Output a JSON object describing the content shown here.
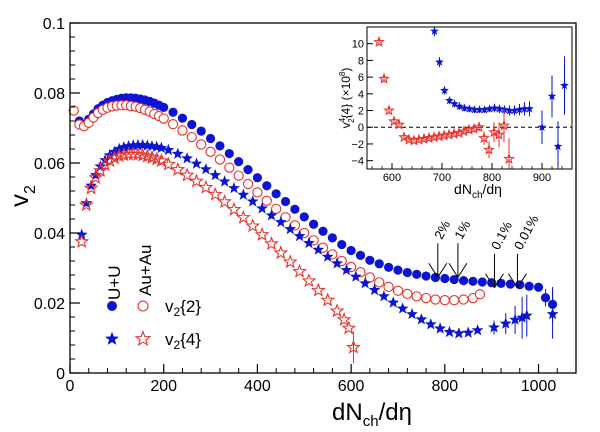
{
  "chart_data": [
    {
      "type": "scatter",
      "xlabel": "dN",
      "xlabel_sub": "ch",
      "xlabel_tail": "/dη",
      "ylabel": "v",
      "ylabel_sub": "2",
      "xlim": [
        0,
        1080
      ],
      "ylim": [
        0,
        0.1
      ],
      "x_ticks": [
        0,
        200,
        400,
        600,
        800,
        1000
      ],
      "x_tick_labels": [
        "0",
        "200",
        "400",
        "600",
        "800",
        "1000"
      ],
      "y_ticks": [
        0,
        0.02,
        0.04,
        0.06,
        0.08,
        0.1
      ],
      "y_tick_labels": [
        "0",
        "0.02",
        "0.04",
        "0.06",
        "0.08",
        "0.1"
      ],
      "legend": {
        "col1": "U+U",
        "col2": "Au+Au",
        "row1": "v",
        "row1_sub": "2",
        "row1_tail": "{2}",
        "row2": "v",
        "row2_sub": "2",
        "row2_tail": "{4}"
      },
      "annotations": [
        {
          "text": "2%",
          "x": 785,
          "y": 0.0285
        },
        {
          "text": "1%",
          "x": 828,
          "y": 0.0285
        },
        {
          "text": "0.1%",
          "x": 906,
          "y": 0.0255
        },
        {
          "text": "0.01%",
          "x": 955,
          "y": 0.0255
        }
      ],
      "colors": {
        "uu": "#0a14d2",
        "auau": "#e8322a"
      },
      "series": [
        {
          "name": "U+U v2{2}",
          "marker": "filled-circle",
          "color": "#0a14d2",
          "x": [
            8,
            20,
            30,
            40,
            50,
            60,
            70,
            80,
            90,
            100,
            110,
            120,
            130,
            140,
            150,
            160,
            170,
            180,
            190,
            200,
            220,
            240,
            260,
            280,
            300,
            320,
            340,
            360,
            380,
            400,
            420,
            440,
            460,
            480,
            500,
            520,
            540,
            560,
            580,
            600,
            620,
            640,
            660,
            680,
            700,
            720,
            740,
            760,
            780,
            800,
            820,
            840,
            860,
            880,
            900,
            920,
            940,
            960,
            980,
            1000,
            1015,
            1030
          ],
          "y": [
            0.075,
            0.072,
            0.071,
            0.0725,
            0.074,
            0.0755,
            0.0765,
            0.0773,
            0.0778,
            0.0782,
            0.0785,
            0.0786,
            0.0786,
            0.0785,
            0.0783,
            0.078,
            0.0776,
            0.0771,
            0.0765,
            0.0759,
            0.0745,
            0.0728,
            0.071,
            0.0691,
            0.067,
            0.0649,
            0.0627,
            0.0604,
            0.0581,
            0.0558,
            0.0535,
            0.0512,
            0.049,
            0.0468,
            0.0446,
            0.0425,
            0.0405,
            0.0386,
            0.0367,
            0.035,
            0.0336,
            0.0322,
            0.0312,
            0.0302,
            0.0294,
            0.0287,
            0.0282,
            0.0277,
            0.0273,
            0.027,
            0.0267,
            0.0264,
            0.0262,
            0.026,
            0.0258,
            0.0256,
            0.0254,
            0.0252,
            0.0248,
            0.0245,
            0.0215,
            0.0196
          ],
          "err": [
            0,
            0,
            0,
            0,
            0,
            0,
            0,
            0,
            0,
            0,
            0,
            0,
            0,
            0,
            0,
            0,
            0,
            0,
            0,
            0,
            0,
            0,
            0,
            0,
            0,
            0,
            0,
            0,
            0,
            0,
            0,
            0,
            0,
            0,
            0,
            0,
            0,
            0,
            0,
            0,
            0,
            0,
            0,
            0,
            0,
            0,
            0,
            0,
            0,
            0,
            0,
            0,
            0,
            0,
            0,
            0,
            0,
            0,
            0,
            0,
            0.0025,
            0.005
          ]
        },
        {
          "name": "Au+Au v2{2}",
          "marker": "open-circle",
          "color": "#e8322a",
          "x": [
            8,
            20,
            30,
            40,
            50,
            60,
            70,
            80,
            90,
            100,
            110,
            120,
            130,
            140,
            150,
            160,
            170,
            180,
            190,
            200,
            220,
            240,
            260,
            280,
            300,
            320,
            340,
            360,
            380,
            400,
            420,
            440,
            460,
            480,
            500,
            520,
            540,
            560,
            580,
            600,
            620,
            640,
            660,
            680,
            700,
            720,
            740,
            760,
            780,
            800,
            820,
            840,
            860,
            875
          ],
          "y": [
            0.075,
            0.071,
            0.0705,
            0.0715,
            0.073,
            0.0743,
            0.0752,
            0.0758,
            0.0762,
            0.0764,
            0.0765,
            0.0765,
            0.0763,
            0.0761,
            0.0757,
            0.0752,
            0.0747,
            0.074,
            0.0734,
            0.0727,
            0.0711,
            0.0693,
            0.0674,
            0.0653,
            0.0632,
            0.061,
            0.0587,
            0.0564,
            0.054,
            0.0516,
            0.0492,
            0.0469,
            0.0445,
            0.0422,
            0.04,
            0.0379,
            0.0358,
            0.0339,
            0.032,
            0.0303,
            0.0288,
            0.0273,
            0.0259,
            0.0246,
            0.0235,
            0.0226,
            0.0219,
            0.0214,
            0.021,
            0.0208,
            0.0208,
            0.021,
            0.0214,
            0.0225
          ],
          "err": [
            0,
            0,
            0,
            0,
            0,
            0,
            0,
            0,
            0,
            0,
            0,
            0,
            0,
            0,
            0,
            0,
            0,
            0,
            0,
            0,
            0,
            0,
            0,
            0,
            0,
            0,
            0,
            0,
            0,
            0,
            0,
            0,
            0,
            0,
            0,
            0,
            0,
            0,
            0,
            0,
            0,
            0,
            0,
            0,
            0,
            0,
            0,
            0,
            0,
            0,
            0,
            0,
            0,
            0.0015
          ]
        },
        {
          "name": "U+U v2{4}",
          "marker": "filled-star",
          "color": "#0a14d2",
          "x": [
            25,
            35,
            45,
            55,
            65,
            75,
            85,
            95,
            105,
            115,
            125,
            135,
            145,
            155,
            165,
            175,
            185,
            195,
            210,
            230,
            250,
            270,
            290,
            310,
            330,
            350,
            370,
            390,
            410,
            430,
            450,
            470,
            490,
            510,
            530,
            550,
            570,
            590,
            610,
            630,
            650,
            670,
            690,
            710,
            730,
            750,
            770,
            790,
            810,
            830,
            850,
            870,
            905,
            930,
            950,
            965,
            975,
            1030
          ],
          "y": [
            0.0395,
            0.0485,
            0.0535,
            0.0565,
            0.059,
            0.0608,
            0.0622,
            0.0632,
            0.064,
            0.0645,
            0.0648,
            0.065,
            0.0651,
            0.0651,
            0.065,
            0.0648,
            0.0646,
            0.0643,
            0.0637,
            0.0626,
            0.0613,
            0.0598,
            0.0582,
            0.0565,
            0.0547,
            0.0528,
            0.0509,
            0.049,
            0.047,
            0.045,
            0.0431,
            0.0411,
            0.0391,
            0.0371,
            0.0352,
            0.0332,
            0.0313,
            0.0294,
            0.0275,
            0.0256,
            0.0237,
            0.0219,
            0.0201,
            0.0184,
            0.0168,
            0.0153,
            0.0139,
            0.0127,
            0.0117,
            0.0113,
            0.0115,
            0.0122,
            0.013,
            0.0141,
            0.0152,
            0.0158,
            0.0164,
            0.0168
          ],
          "err": [
            0,
            0,
            0,
            0,
            0,
            0,
            0,
            0,
            0,
            0,
            0,
            0,
            0,
            0,
            0,
            0,
            0,
            0,
            0,
            0,
            0,
            0,
            0,
            0,
            0,
            0,
            0,
            0,
            0,
            0,
            0,
            0,
            0,
            0,
            0,
            0,
            0,
            0,
            0,
            0,
            0,
            0,
            0,
            0,
            0,
            0,
            0,
            0,
            0,
            0,
            0,
            0,
            0.002,
            0.003,
            0.004,
            0.006,
            0.006,
            0.007
          ]
        },
        {
          "name": "Au+Au v2{4}",
          "marker": "open-star",
          "color": "#e8322a",
          "x": [
            25,
            35,
            45,
            55,
            65,
            75,
            85,
            95,
            105,
            115,
            125,
            135,
            145,
            155,
            165,
            175,
            185,
            195,
            210,
            230,
            250,
            270,
            290,
            310,
            330,
            350,
            370,
            390,
            410,
            430,
            450,
            470,
            490,
            510,
            530,
            550,
            570,
            585,
            595,
            605
          ],
          "y": [
            0.0375,
            0.048,
            0.0528,
            0.0558,
            0.0578,
            0.0594,
            0.0606,
            0.0614,
            0.062,
            0.0623,
            0.0625,
            0.0625,
            0.0624,
            0.0622,
            0.0619,
            0.0615,
            0.0611,
            0.0606,
            0.0596,
            0.0581,
            0.0565,
            0.0548,
            0.053,
            0.051,
            0.0489,
            0.0467,
            0.0444,
            0.042,
            0.0395,
            0.0369,
            0.0343,
            0.0317,
            0.029,
            0.0263,
            0.0236,
            0.0208,
            0.0177,
            0.0152,
            0.0128,
            0.0073
          ],
          "err": [
            0,
            0,
            0,
            0,
            0,
            0,
            0,
            0,
            0,
            0,
            0,
            0,
            0,
            0,
            0,
            0,
            0,
            0,
            0,
            0,
            0,
            0,
            0,
            0,
            0,
            0,
            0,
            0,
            0,
            0,
            0,
            0,
            0,
            0,
            0,
            0,
            0,
            0,
            0,
            0.0045
          ]
        }
      ]
    },
    {
      "type": "scatter",
      "xlabel": "dN",
      "xlabel_sub": "ch",
      "xlabel_tail": "/dη",
      "ylabel": "v",
      "ylabel_sup": "4",
      "ylabel_sub": "2",
      "ylabel_tail": "{4} (×10",
      "ylabel_exp": "8",
      "ylabel_close": ")",
      "xlim": [
        550,
        960
      ],
      "ylim": [
        -5,
        12
      ],
      "x_ticks": [
        600,
        700,
        800,
        900
      ],
      "x_tick_labels": [
        "600",
        "700",
        "800",
        "900"
      ],
      "y_ticks": [
        -4,
        -2,
        0,
        2,
        4,
        6,
        8,
        10
      ],
      "y_tick_labels": [
        "−4",
        "−2",
        "0",
        "2",
        "4",
        "6",
        "8",
        "10"
      ],
      "series": [
        {
          "name": "U+U",
          "marker": "filled-star",
          "color": "#0a14d2",
          "x": [
            685,
            695,
            705,
            715,
            725,
            735,
            745,
            755,
            765,
            775,
            785,
            795,
            805,
            815,
            825,
            835,
            845,
            855,
            865,
            875,
            900,
            920,
            932,
            945
          ],
          "y": [
            11.5,
            7.8,
            4.4,
            3.2,
            2.8,
            2.5,
            2.3,
            2.2,
            2.1,
            2.1,
            2.1,
            2.2,
            2.3,
            2.2,
            2.1,
            2.0,
            2.0,
            2.1,
            2.2,
            2.2,
            0.0,
            3.7,
            -2.3,
            5.0
          ],
          "err": [
            0.6,
            0.6,
            0.5,
            0.4,
            0.4,
            0.4,
            0.4,
            0.4,
            0.4,
            0.4,
            0.4,
            0.4,
            0.5,
            0.5,
            0.5,
            0.6,
            0.6,
            0.7,
            0.8,
            0.9,
            2.0,
            2.5,
            3.0,
            3.5
          ]
        },
        {
          "name": "Au+Au",
          "marker": "open-star",
          "color": "#e8322a",
          "x": [
            574,
            584,
            594,
            604,
            614,
            624,
            634,
            644,
            654,
            664,
            674,
            684,
            694,
            704,
            714,
            724,
            734,
            744,
            754,
            764,
            774,
            784,
            794,
            804,
            814,
            824,
            834
          ],
          "y": [
            10.2,
            5.8,
            2.0,
            0.7,
            0.3,
            -1.2,
            -1.5,
            -1.6,
            -1.5,
            -1.4,
            -1.3,
            -1.2,
            -1.1,
            -1.0,
            -0.9,
            -0.8,
            -0.7,
            -0.5,
            -0.3,
            -0.2,
            0.0,
            -1.3,
            -2.7,
            -0.6,
            -0.9,
            0.2,
            -3.8
          ],
          "err": [
            0.4,
            0.4,
            0.4,
            0.3,
            0.3,
            0.3,
            0.3,
            0.3,
            0.3,
            0.3,
            0.3,
            0.3,
            0.3,
            0.3,
            0.3,
            0.3,
            0.3,
            0.3,
            0.4,
            0.4,
            0.5,
            0.8,
            1.0,
            1.2,
            1.5,
            2.0,
            2.5
          ]
        }
      ]
    }
  ]
}
